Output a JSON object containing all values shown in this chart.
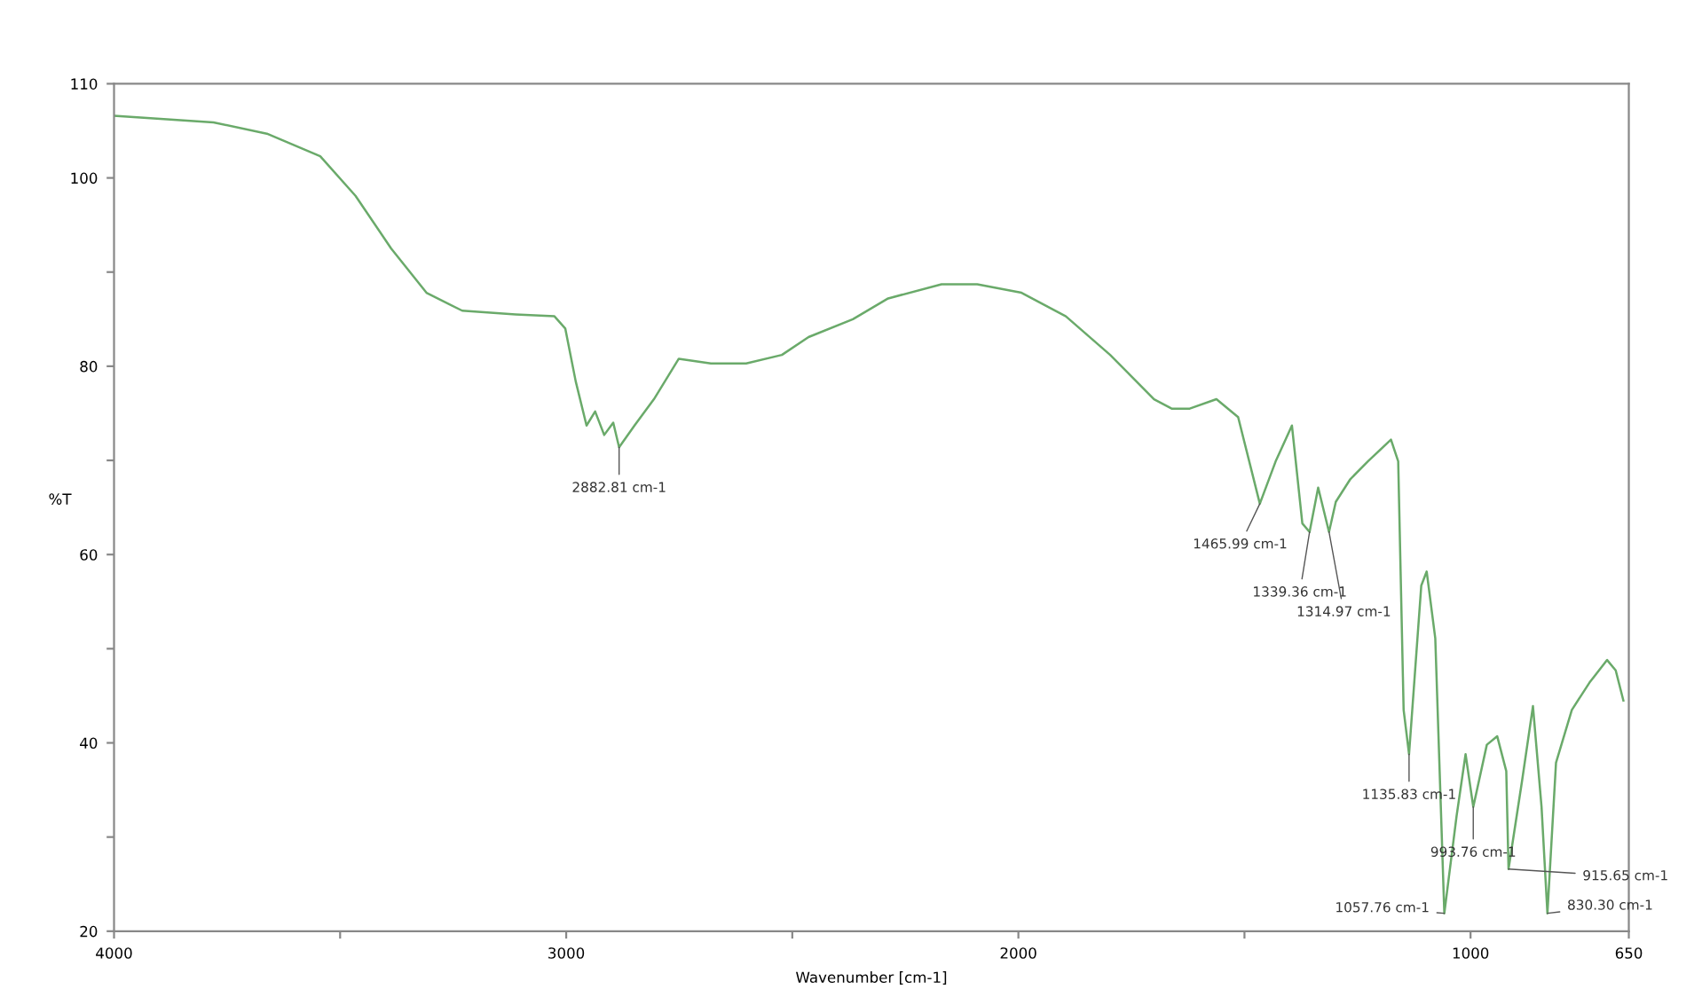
{
  "chart_data": {
    "type": "line",
    "xlabel": "Wavenumber [cm-1]",
    "ylabel": "%T",
    "xlim": [
      4000,
      650
    ],
    "ylim": [
      20,
      110
    ],
    "xticks": [
      4000,
      {
        "value": 3500,
        "label": null
      },
      3000,
      {
        "value": 2500,
        "label": null
      },
      2000,
      {
        "value": 1500,
        "label": null
      },
      1000,
      650
    ],
    "yticks": [
      20,
      {
        "value": 30,
        "label": null
      },
      40,
      {
        "value": 50,
        "label": null
      },
      60,
      {
        "value": 70,
        "label": null
      },
      80,
      {
        "value": 90,
        "label": null
      },
      100,
      110
    ],
    "grid": false,
    "legend": false,
    "marker": "none",
    "line_style": "solid",
    "series": [
      {
        "color": "#6aaa6a",
        "x": [
          4000,
          3780,
          3662,
          3544,
          3466,
          3387,
          3309,
          3230,
          3112,
          3026,
          3002,
          2979,
          2955,
          2936,
          2916,
          2896,
          2883,
          2849,
          2806,
          2751,
          2680,
          2602,
          2523,
          2464,
          2366,
          2288,
          2170,
          2091,
          1993,
          1895,
          1797,
          1700,
          1661,
          1621,
          1562,
          1514,
          1466,
          1431,
          1395,
          1372,
          1356,
          1337,
          1313,
          1298,
          1266,
          1227,
          1176,
          1160,
          1148,
          1136,
          1109,
          1097,
          1078,
          1058,
          1031,
          1011,
          994,
          964,
          941,
          921,
          916,
          886,
          862,
          843,
          830,
          811,
          776,
          737,
          698,
          679,
          662
        ],
        "values": [
          106.6,
          105.9,
          104.7,
          102.3,
          98.1,
          92.5,
          87.8,
          85.9,
          85.5,
          85.3,
          84,
          78.4,
          73.7,
          75.2,
          72.7,
          74,
          71.4,
          73.7,
          76.5,
          80.8,
          80.3,
          80.3,
          81.2,
          83.1,
          85,
          87.2,
          88.7,
          88.7,
          87.8,
          85.3,
          81.2,
          76.5,
          75.5,
          75.5,
          76.5,
          74.6,
          65.4,
          69.9,
          73.7,
          63.3,
          62.4,
          67.1,
          62.4,
          65.6,
          68,
          69.9,
          72.2,
          69.9,
          43.5,
          38.8,
          56.7,
          58.2,
          51.1,
          21.9,
          32.2,
          38.8,
          33.2,
          39.8,
          40.7,
          37,
          26.6,
          36,
          43.9,
          33.2,
          21.9,
          37.9,
          43.5,
          46.4,
          48.8,
          47.7,
          44.5
        ]
      }
    ],
    "annotations": [
      {
        "text": "2882.81 cm-1",
        "x": 2883,
        "y": 71.4
      },
      {
        "text": "1465.99 cm-1",
        "x": 1466,
        "y": 65.4
      },
      {
        "text": "1339.36 cm-1",
        "x": 1356,
        "y": 62.4
      },
      {
        "text": "1314.97 cm-1",
        "x": 1313,
        "y": 62.4
      },
      {
        "text": "1135.83 cm-1",
        "x": 1136,
        "y": 38.8
      },
      {
        "text": "1057.76 cm-1",
        "x": 1058,
        "y": 21.9
      },
      {
        "text": "993.76 cm-1",
        "x": 994,
        "y": 33.2
      },
      {
        "text": "915.65 cm-1",
        "x": 916,
        "y": 26.6
      },
      {
        "text": "830.30 cm-1",
        "x": 830,
        "y": 21.9
      }
    ]
  }
}
